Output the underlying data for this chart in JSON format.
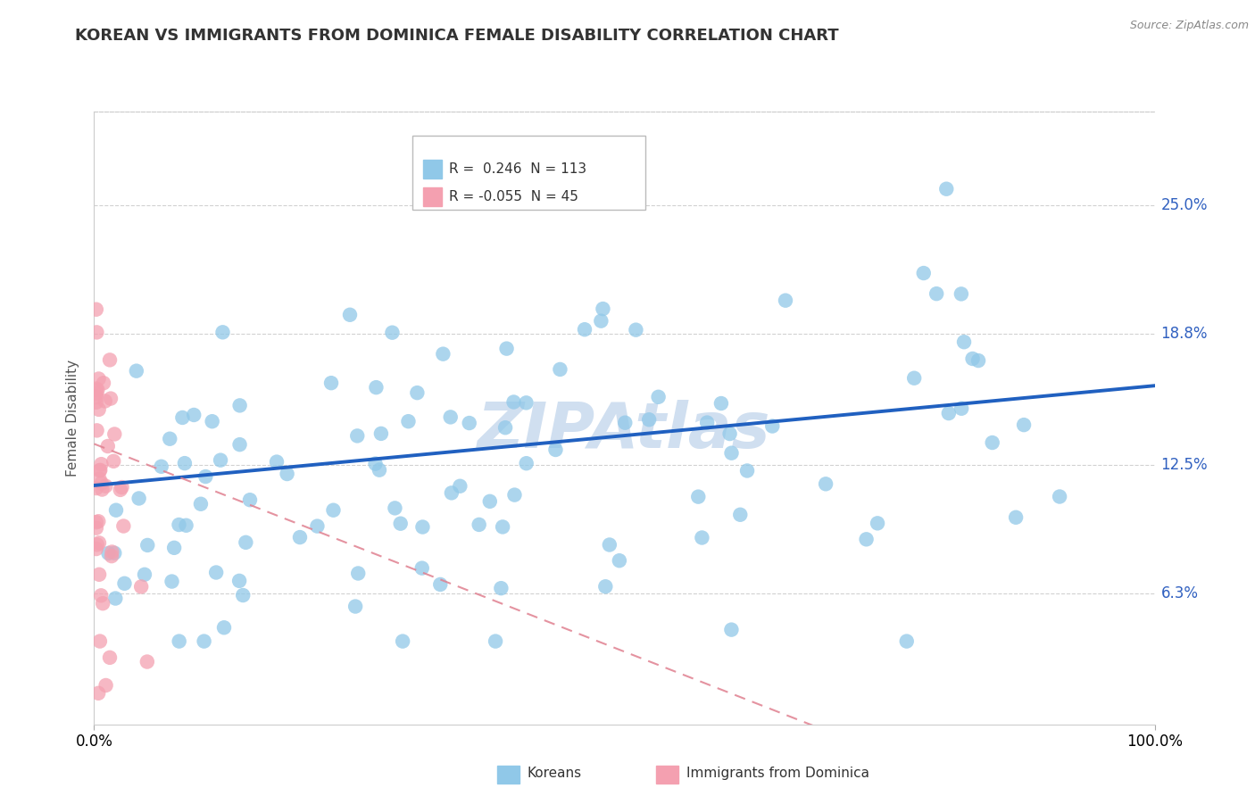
{
  "title": "KOREAN VS IMMIGRANTS FROM DOMINICA FEMALE DISABILITY CORRELATION CHART",
  "source": "Source: ZipAtlas.com",
  "ylabel": "Female Disability",
  "r_korean": 0.246,
  "n_korean": 113,
  "r_dominica": -0.055,
  "n_dominica": 45,
  "watermark": "ZIPAtlas",
  "xlim": [
    0.0,
    1.0
  ],
  "ylim": [
    0.0,
    0.295
  ],
  "ytick_vals": [
    0.063,
    0.125,
    0.188,
    0.25
  ],
  "ytick_labels": [
    "6.3%",
    "12.5%",
    "18.8%",
    "25.0%"
  ],
  "xtick_labels": [
    "0.0%",
    "100.0%"
  ],
  "scatter_blue_color": "#90C8E8",
  "scatter_pink_color": "#F4A0B0",
  "line_blue_color": "#2060C0",
  "line_pink_color": "#E08090",
  "background_color": "#FFFFFF",
  "title_color": "#333333",
  "title_fontsize": 13,
  "right_tick_color": "#3060C0",
  "grid_color": "#CCCCCC",
  "watermark_color": "#D0DFF0"
}
